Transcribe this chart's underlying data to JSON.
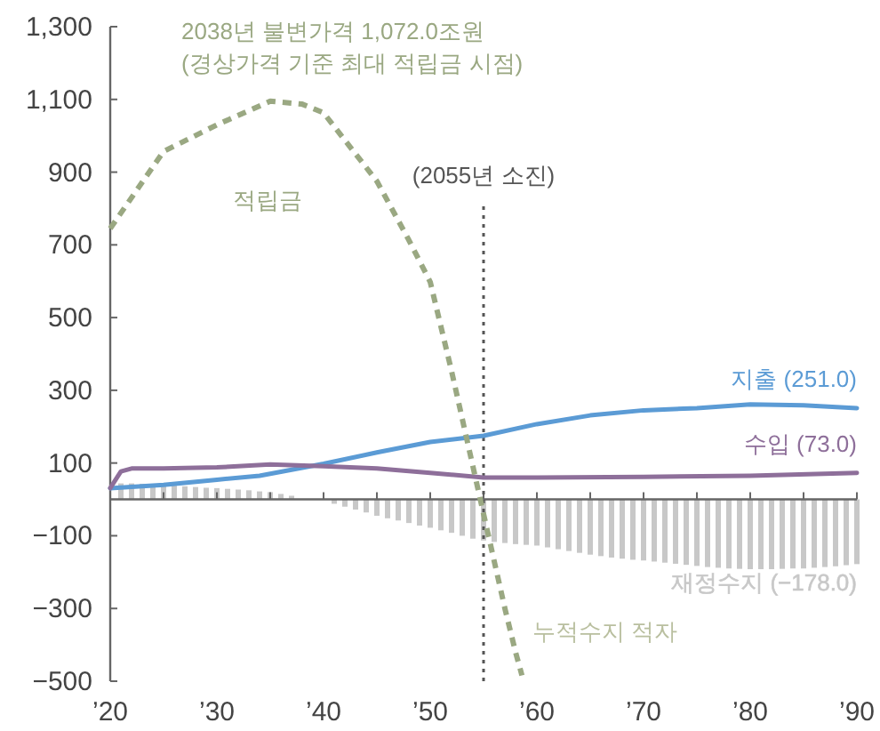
{
  "chart_data": {
    "type": "line",
    "xlim": [
      2020,
      2090
    ],
    "ylim": [
      -500,
      1300
    ],
    "xticks": [
      {
        "value": 2020,
        "label": "’20"
      },
      {
        "value": 2025,
        "label": null
      },
      {
        "value": 2030,
        "label": "’30"
      },
      {
        "value": 2035,
        "label": null
      },
      {
        "value": 2040,
        "label": "’40"
      },
      {
        "value": 2045,
        "label": null
      },
      {
        "value": 2050,
        "label": "’50"
      },
      {
        "value": 2055,
        "label": null
      },
      {
        "value": 2060,
        "label": "’60"
      },
      {
        "value": 2065,
        "label": null
      },
      {
        "value": 2070,
        "label": "’70"
      },
      {
        "value": 2075,
        "label": null
      },
      {
        "value": 2080,
        "label": "’80"
      },
      {
        "value": 2085,
        "label": null
      },
      {
        "value": 2090,
        "label": "’90"
      }
    ],
    "yticks": [
      {
        "value": 1300,
        "label": "1,300"
      },
      {
        "value": 1100,
        "label": "1,100"
      },
      900,
      700,
      500,
      300,
      100,
      {
        "value": -100,
        "label": "−100"
      },
      {
        "value": -300,
        "label": "−300"
      },
      {
        "value": -500,
        "label": "−500"
      }
    ],
    "grid": false,
    "legend": false,
    "marker": "none",
    "series": [
      {
        "name": "재정수지 (−178.0)",
        "type": "bar",
        "color": "#c8c8c8",
        "x": [
          2021,
          2022,
          2023,
          2024,
          2025,
          2026,
          2027,
          2028,
          2029,
          2030,
          2031,
          2032,
          2033,
          2034,
          2035,
          2036,
          2037,
          2038,
          2039,
          2040,
          2041,
          2042,
          2043,
          2044,
          2045,
          2046,
          2047,
          2048,
          2049,
          2050,
          2051,
          2052,
          2053,
          2054,
          2055,
          2056,
          2057,
          2058,
          2059,
          2060,
          2061,
          2062,
          2063,
          2064,
          2065,
          2066,
          2067,
          2068,
          2069,
          2070,
          2071,
          2072,
          2073,
          2074,
          2075,
          2076,
          2077,
          2078,
          2079,
          2080,
          2081,
          2082,
          2083,
          2084,
          2085,
          2086,
          2087,
          2088,
          2089,
          2090
        ],
        "values": [
          44,
          44,
          43,
          42,
          40,
          38,
          36,
          34,
          32,
          31,
          29,
          27,
          25,
          22,
          20,
          15,
          10,
          null,
          0,
          null,
          -12,
          -20,
          -28,
          -36,
          -45,
          -52,
          -58,
          -65,
          -72,
          -78,
          -85,
          -92,
          -100,
          -108,
          -113,
          -117,
          -120,
          -123,
          -125,
          -127,
          -132,
          -137,
          -142,
          -147,
          -152,
          -156,
          -160,
          -163,
          -166,
          -168,
          -171,
          -174,
          -177,
          -180,
          -183,
          -186,
          -188,
          -190,
          -191,
          -192,
          -192,
          -192,
          -191,
          -190,
          -190,
          -188,
          -186,
          -184,
          -181,
          -178
        ]
      },
      {
        "name": "지출 (251.0)",
        "color": "#5b9bd5",
        "line_style": "solid",
        "x": [
          2020,
          2025,
          2030,
          2034,
          2040,
          2045,
          2050,
          2055,
          2060,
          2065,
          2070,
          2075,
          2080,
          2085,
          2090
        ],
        "values": [
          31,
          40,
          54,
          65,
          98,
          129,
          158,
          175,
          207,
          231,
          245,
          251,
          261,
          259,
          251
        ]
      },
      {
        "name": "수입 (73.0)",
        "color": "#8e6f9a",
        "line_style": "solid",
        "x": [
          2020,
          2021,
          2022,
          2025,
          2030,
          2035,
          2040,
          2045,
          2050,
          2055,
          2060,
          2070,
          2080,
          2090
        ],
        "values": [
          31,
          77,
          85,
          85,
          88,
          96,
          91,
          85,
          73,
          60,
          60,
          62,
          65,
          73
        ]
      },
      {
        "name": "적립금",
        "color": "#9aa882",
        "line_style": "dashed",
        "x": [
          2020,
          2025,
          2030,
          2035,
          2038,
          2040,
          2045,
          2048,
          2050,
          2052,
          2055,
          2056,
          2057,
          2058,
          2058.6
        ],
        "values": [
          745,
          957,
          1030,
          1095,
          1087,
          1063,
          875,
          713,
          598,
          353,
          -40,
          -170,
          -300,
          -420,
          -484
        ]
      }
    ],
    "ref_lines": [
      {
        "axis": "x",
        "value": 2055,
        "label": "(2055년 소진)",
        "color": "#555555",
        "line_style": "dotted"
      }
    ],
    "annotations": [
      "2038년 불변가격 1,072.0조원\n(경상가격 기준 최대 적립금 시점)",
      "누적수지 적자"
    ]
  }
}
